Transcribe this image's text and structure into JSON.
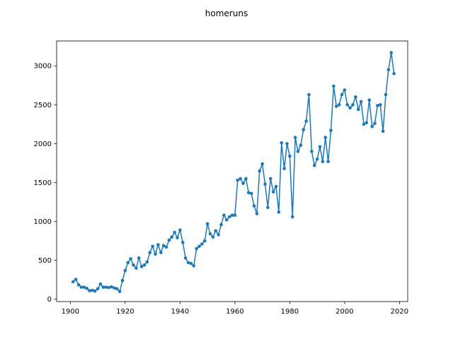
{
  "chart_data": {
    "type": "line",
    "title": "homeruns",
    "xlabel": "",
    "ylabel": "",
    "xlim": [
      1895,
      2023
    ],
    "ylim": [
      -30,
      3320
    ],
    "x_ticks": [
      1900,
      1920,
      1940,
      1960,
      1980,
      2000,
      2020
    ],
    "y_ticks": [
      0,
      500,
      1000,
      1500,
      2000,
      2500,
      3000
    ],
    "grid": false,
    "series_color": "#1f77b4",
    "markers": true,
    "series": [
      {
        "x": [
          1901,
          1902,
          1903,
          1904,
          1905,
          1906,
          1907,
          1908,
          1909,
          1910,
          1911,
          1912,
          1913,
          1914,
          1915,
          1916,
          1917,
          1918,
          1919,
          1920,
          1921,
          1922,
          1923,
          1924,
          1925,
          1926,
          1927,
          1928,
          1929,
          1930,
          1931,
          1932,
          1933,
          1934,
          1935,
          1936,
          1937,
          1938,
          1939,
          1940,
          1941,
          1942,
          1943,
          1944,
          1945,
          1946,
          1947,
          1948,
          1949,
          1950,
          1951,
          1952,
          1953,
          1954,
          1955,
          1956,
          1957,
          1958,
          1959,
          1960,
          1961,
          1962,
          1963,
          1964,
          1965,
          1966,
          1967,
          1968,
          1969,
          1970,
          1971,
          1972,
          1973,
          1974,
          1975,
          1976,
          1977,
          1978,
          1979,
          1980,
          1981,
          1982,
          1983,
          1984,
          1985,
          1986,
          1987,
          1988,
          1989,
          1990,
          1991,
          1992,
          1993,
          1994,
          1995,
          1996,
          1997,
          1998,
          1999,
          2000,
          2001,
          2002,
          2003,
          2004,
          2005,
          2006,
          2007,
          2008,
          2009,
          2010,
          2011,
          2012,
          2013,
          2014,
          2015,
          2016,
          2017,
          2018
        ],
        "y": [
          225,
          255,
          185,
          155,
          155,
          140,
          110,
          115,
          105,
          135,
          195,
          155,
          155,
          150,
          160,
          145,
          135,
          100,
          240,
          370,
          470,
          520,
          440,
          400,
          530,
          420,
          440,
          480,
          600,
          680,
          580,
          700,
          600,
          690,
          670,
          760,
          800,
          860,
          790,
          890,
          730,
          530,
          470,
          460,
          430,
          650,
          680,
          710,
          750,
          970,
          840,
          800,
          880,
          830,
          960,
          1080,
          1020,
          1060,
          1080,
          1080,
          1530,
          1550,
          1490,
          1550,
          1370,
          1360,
          1200,
          1100,
          1650,
          1740,
          1480,
          1180,
          1550,
          1380,
          1450,
          1120,
          2010,
          1680,
          2000,
          1840,
          1060,
          2080,
          1900,
          1980,
          2180,
          2290,
          2630,
          1900,
          1720,
          1800,
          1960,
          1770,
          2080,
          1770,
          2170,
          2740,
          2480,
          2500,
          2630,
          2690,
          2500,
          2460,
          2500,
          2600,
          2440,
          2540,
          2250,
          2270,
          2560,
          2220,
          2260,
          2490,
          2500,
          2160,
          2630,
          2950,
          3170,
          2900
        ]
      }
    ]
  }
}
